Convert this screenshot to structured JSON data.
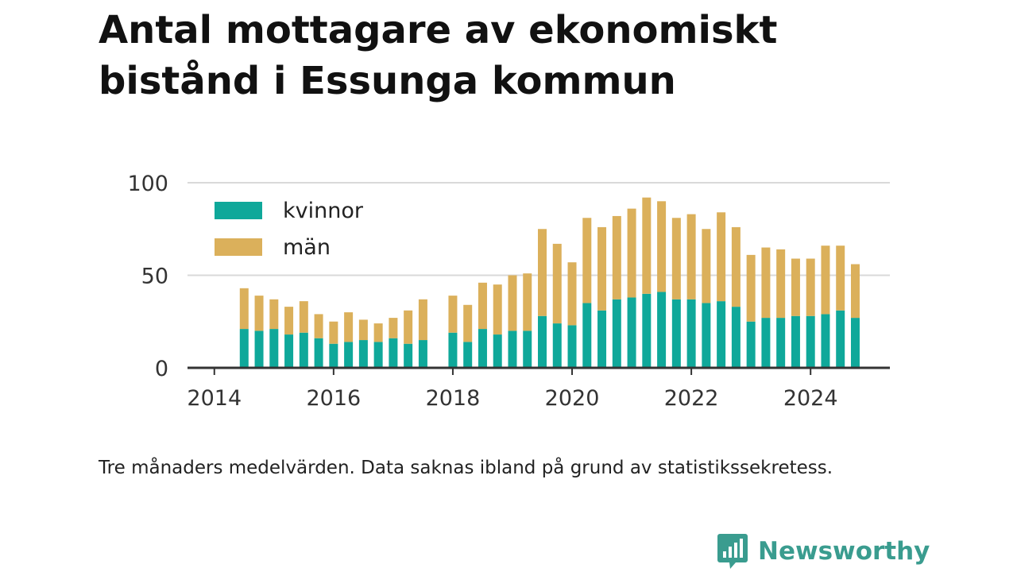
{
  "title": "Antal mottagare av ekonomiskt bistånd i Essunga kommun",
  "footnote": "Tre månaders medelvärden. Data saknas ibland på grund av statistikssekretess.",
  "brand": {
    "name": "Newsworthy"
  },
  "colors": {
    "kvinnor": "#0fa89a",
    "man": "#dbb05b",
    "grid": "#d9d9d9",
    "axis": "#333333",
    "brand": "#3a9c8f"
  },
  "chart_data": {
    "type": "bar",
    "stacked": true,
    "x_axis": {
      "type": "time",
      "ticks": [
        "2014",
        "2016",
        "2018",
        "2020",
        "2022",
        "2024"
      ],
      "range": [
        2013.55,
        2025.33
      ]
    },
    "y_axis": {
      "ticks": [
        "0",
        "50",
        "100"
      ],
      "range": [
        0,
        100
      ]
    },
    "grid": true,
    "legend": {
      "position": "top-left"
    },
    "x": [
      2014.5,
      2014.75,
      2015.0,
      2015.25,
      2015.5,
      2015.75,
      2016.0,
      2016.25,
      2016.5,
      2016.75,
      2017.0,
      2017.25,
      2017.5,
      2017.75,
      2018.0,
      2018.25,
      2018.5,
      2018.75,
      2019.0,
      2019.25,
      2019.5,
      2019.75,
      2020.0,
      2020.25,
      2020.5,
      2020.75,
      2021.0,
      2021.25,
      2021.5,
      2021.75,
      2022.0,
      2022.25,
      2022.5,
      2022.75,
      2023.0,
      2023.25,
      2023.5,
      2023.75,
      2024.0,
      2024.25,
      2024.5,
      2024.75
    ],
    "series": [
      {
        "name": "kvinnor",
        "values": [
          21,
          20,
          21,
          18,
          19,
          16,
          13,
          14,
          15,
          14,
          16,
          13,
          15,
          null,
          19,
          14,
          21,
          18,
          20,
          20,
          28,
          24,
          23,
          35,
          31,
          37,
          38,
          40,
          41,
          37,
          37,
          35,
          36,
          33,
          25,
          27,
          27,
          28,
          28,
          29,
          31,
          27
        ]
      },
      {
        "name": "män",
        "values": [
          22,
          19,
          16,
          15,
          17,
          13,
          12,
          16,
          11,
          10,
          11,
          18,
          22,
          null,
          20,
          20,
          25,
          27,
          30,
          31,
          47,
          43,
          34,
          46,
          45,
          45,
          48,
          52,
          49,
          44,
          46,
          40,
          48,
          43,
          36,
          38,
          37,
          31,
          31,
          37,
          35,
          29
        ]
      }
    ]
  }
}
